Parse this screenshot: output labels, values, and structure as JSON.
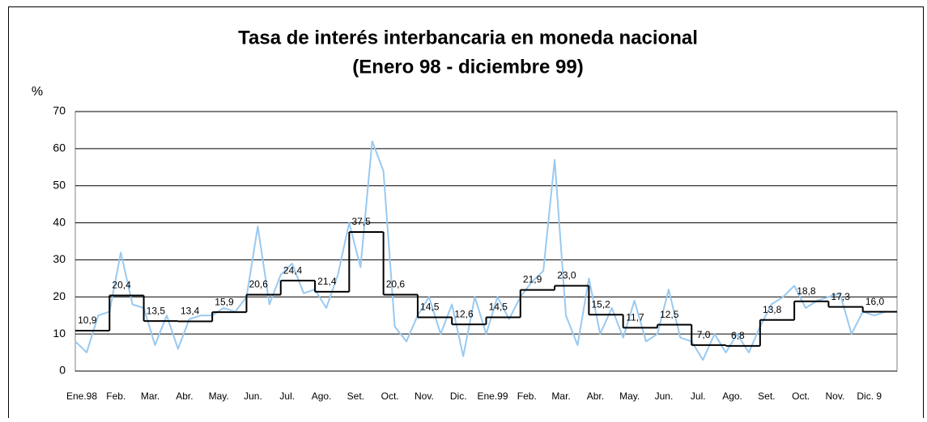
{
  "chart_data": {
    "type": "line",
    "title": "Tasa de interés interbancaria en moneda nacional",
    "subtitle": "(Enero 98 - diciembre 99)",
    "y_label": "%",
    "categories": [
      "Ene.98",
      "Feb.",
      "Mar.",
      "Abr.",
      "May.",
      "Jun.",
      "Jul.",
      "Ago.",
      "Set.",
      "Oct.",
      "Nov.",
      "Dic.",
      "Ene.99",
      "Feb.",
      "Mar.",
      "Abr.",
      "May.",
      "Jun.",
      "Jul.",
      "Ago.",
      "Set.",
      "Oct.",
      "Nov.",
      "Dic. 9"
    ],
    "ylim": [
      0,
      70
    ],
    "yticks": [
      0,
      10,
      20,
      30,
      40,
      50,
      60,
      70
    ],
    "grid": true,
    "series": [
      {
        "color": "#99c9f0",
        "x": [
          0,
          0.33,
          0.67,
          1,
          1.33,
          1.67,
          2,
          2.33,
          2.67,
          3,
          3.33,
          3.67,
          4,
          4.33,
          4.67,
          5,
          5.33,
          5.67,
          6,
          6.33,
          6.67,
          7,
          7.33,
          7.67,
          8,
          8.33,
          8.67,
          9,
          9.33,
          9.67,
          10,
          10.33,
          10.67,
          11,
          11.33,
          11.67,
          12,
          12.33,
          12.67,
          13,
          13.33,
          13.67,
          14,
          14.33,
          14.67,
          15,
          15.33,
          15.67,
          16,
          16.33,
          16.67,
          17,
          17.33,
          17.67,
          18,
          18.33,
          18.67,
          19,
          19.33,
          19.67,
          20,
          20.33,
          20.67,
          21,
          21.33,
          21.67,
          22,
          22.33,
          22.67,
          23,
          23.33,
          23.67
        ],
        "values": [
          8,
          5,
          15,
          16,
          32,
          18,
          17,
          7,
          15,
          6,
          14,
          15,
          15,
          17,
          16,
          20,
          39,
          18,
          26,
          29,
          21,
          22,
          17,
          26,
          40,
          28,
          62,
          54,
          12,
          8,
          15,
          20,
          10,
          18,
          4,
          20,
          10,
          20,
          14,
          20,
          24,
          27,
          57,
          15,
          7,
          25,
          10,
          17,
          9,
          19,
          8,
          10,
          22,
          9,
          8,
          3,
          10,
          5,
          10,
          5,
          12,
          18,
          20,
          23,
          17,
          19,
          20,
          21,
          10,
          16,
          15,
          16
        ]
      },
      {
        "color": "#000000",
        "style": "step",
        "values": [
          10.9,
          20.4,
          13.5,
          13.4,
          15.9,
          20.6,
          24.4,
          21.4,
          37.5,
          20.6,
          14.5,
          12.6,
          14.5,
          21.9,
          23.0,
          15.2,
          11.7,
          12.5,
          7.0,
          6.8,
          13.8,
          18.8,
          17.3,
          16.0
        ],
        "value_labels": [
          "10,9",
          "20,4",
          "13,5",
          "13,4",
          "15,9",
          "20,6",
          "24,4",
          "21,4",
          "37,5",
          "20,6",
          "14,5",
          "12,6",
          "14,5",
          "21,9",
          "23,0",
          "15,2",
          "11,7",
          "12,5",
          "7,0",
          "6,8",
          "13,8",
          "18,8",
          "17,3",
          "16,0"
        ]
      }
    ]
  }
}
